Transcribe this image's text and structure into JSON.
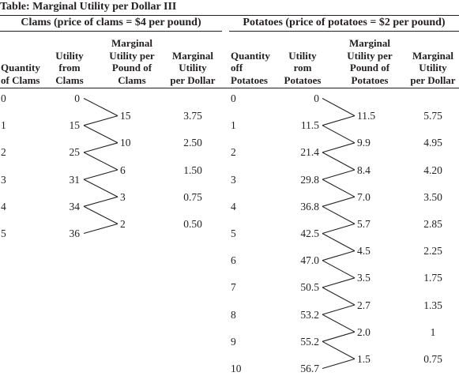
{
  "title": "Table: Marginal Utility per Dollar III",
  "clams": {
    "group_header": "Clams (price of clams = $4 per pound)",
    "headers": [
      "Quantity\nof Clams",
      "Utility\nfrom\nClams",
      "Marginal\nUtility per\nPound of\nClams",
      "Marginal\nUtility\nper Dollar"
    ],
    "rows": [
      {
        "quantity": "0",
        "utility": "0"
      },
      {
        "quantity": "1",
        "utility": "15"
      },
      {
        "quantity": "2",
        "utility": "25"
      },
      {
        "quantity": "3",
        "utility": "31"
      },
      {
        "quantity": "4",
        "utility": "34"
      },
      {
        "quantity": "5",
        "utility": "36"
      }
    ],
    "marginal": [
      {
        "mu": "15",
        "mu_per_dollar": "3.75"
      },
      {
        "mu": "10",
        "mu_per_dollar": "2.50"
      },
      {
        "mu": "6",
        "mu_per_dollar": "1.50"
      },
      {
        "mu": "3",
        "mu_per_dollar": "0.75"
      },
      {
        "mu": "2",
        "mu_per_dollar": "0.50"
      }
    ]
  },
  "potatoes": {
    "group_header": "Potatoes (price of potatoes = $2 per pound)",
    "headers": [
      "Quantity\noff\nPotatoes",
      "Utility\nrom\nPotatoes",
      "Marginal\nUtility per\nPound of\nPotatoes",
      "Marginal\nUtility\nper Dollar"
    ],
    "rows": [
      {
        "quantity": "0",
        "utility": "0"
      },
      {
        "quantity": "1",
        "utility": "11.5"
      },
      {
        "quantity": "2",
        "utility": "21.4"
      },
      {
        "quantity": "3",
        "utility": "29.8"
      },
      {
        "quantity": "4",
        "utility": "36.8"
      },
      {
        "quantity": "5",
        "utility": "42.5"
      },
      {
        "quantity": "6",
        "utility": "47.0"
      },
      {
        "quantity": "7",
        "utility": "50.5"
      },
      {
        "quantity": "8",
        "utility": "53.2"
      },
      {
        "quantity": "9",
        "utility": "55.2"
      },
      {
        "quantity": "10",
        "utility": "56.7"
      }
    ],
    "marginal": [
      {
        "mu": "11.5",
        "mu_per_dollar": "5.75"
      },
      {
        "mu": "9.9",
        "mu_per_dollar": "4.95"
      },
      {
        "mu": "8.4",
        "mu_per_dollar": "4.20"
      },
      {
        "mu": "7.0",
        "mu_per_dollar": "3.50"
      },
      {
        "mu": "5.7",
        "mu_per_dollar": "2.85"
      },
      {
        "mu": "4.5",
        "mu_per_dollar": "2.25"
      },
      {
        "mu": "3.5",
        "mu_per_dollar": "1.75"
      },
      {
        "mu": "2.7",
        "mu_per_dollar": "1.35"
      },
      {
        "mu": "2.0",
        "mu_per_dollar": "1"
      },
      {
        "mu": "1.5",
        "mu_per_dollar": "0.75"
      }
    ]
  }
}
